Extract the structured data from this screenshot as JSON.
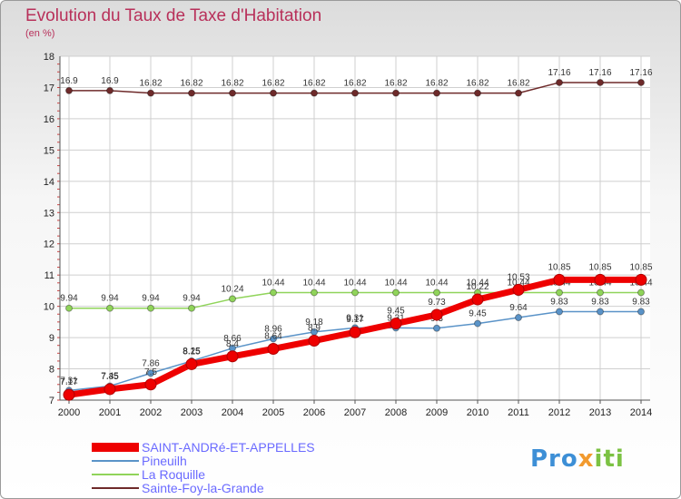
{
  "title": "Evolution du Taux de Taxe d'Habitation",
  "unit": "(en %)",
  "logo": {
    "part1": "Pro",
    "part2": "x",
    "part3": "iti"
  },
  "colors": {
    "title": "#b8305a",
    "grid": "#cfcfcf"
  },
  "chart_data": {
    "type": "line",
    "x": [
      2000,
      2001,
      2002,
      2003,
      2004,
      2005,
      2006,
      2007,
      2008,
      2009,
      2010,
      2011,
      2012,
      2013,
      2014
    ],
    "ylim": [
      7,
      18
    ],
    "yticks": [
      7,
      8,
      9,
      10,
      11,
      12,
      13,
      14,
      15,
      16,
      17,
      18
    ],
    "grid": true,
    "legend": "bottom",
    "series": [
      {
        "name": "Sainte-Foy-la-Grande",
        "color": "#6e2a2a",
        "values": [
          16.9,
          16.9,
          16.82,
          16.82,
          16.82,
          16.82,
          16.82,
          16.82,
          16.82,
          16.82,
          16.82,
          16.82,
          17.16,
          17.16,
          17.16
        ],
        "labels": [
          "16.9",
          "16.9",
          "16.82",
          "16.82",
          "16.82",
          "16.82",
          "16.82",
          "16.82",
          "16.82",
          "16.82",
          "16.82",
          "16.82",
          "17.16",
          "17.16",
          "17.16"
        ]
      },
      {
        "name": "La Roquille",
        "color": "#90d45a",
        "values": [
          9.94,
          9.94,
          9.94,
          9.94,
          10.24,
          10.44,
          10.44,
          10.44,
          10.44,
          10.44,
          10.44,
          10.44,
          10.44,
          10.44,
          10.44
        ],
        "labels": [
          "9.94",
          "9.94",
          "9.94",
          "9.94",
          "10.24",
          "10.44",
          "10.44",
          "10.44",
          "10.44",
          "10.44",
          "10.44",
          "10.44",
          "10.44",
          "10.44",
          "10.44"
        ]
      },
      {
        "name": "Pineuilh",
        "color": "#5a93c8",
        "values": [
          7.31,
          7.45,
          7.86,
          8.25,
          8.66,
          8.96,
          9.18,
          9.31,
          9.31,
          9.3,
          9.45,
          9.64,
          9.83,
          9.83,
          9.83
        ],
        "labels": [
          "7.31",
          "7.45",
          "7.86",
          "8.25",
          "8.66",
          "8.96",
          "9.18",
          "9.31",
          "9.31",
          "9.3",
          "9.45",
          "9.64",
          "9.83",
          "9.83",
          "9.83"
        ]
      },
      {
        "name": "SAINT-ANDRé-ET-APPELLES",
        "color": "#ee0000",
        "values": [
          7.17,
          7.35,
          7.5,
          8.15,
          8.4,
          8.64,
          8.9,
          9.17,
          9.45,
          9.73,
          10.22,
          10.53,
          10.85,
          10.85,
          10.85
        ],
        "labels": [
          "7.17",
          "7.35",
          "7.5",
          "8.15",
          "8.4",
          "8.64",
          "8.9",
          "9.17",
          "9.45",
          "9.73",
          "10.22",
          "10.53",
          "10.85",
          "10.85",
          "10.85"
        ]
      }
    ]
  }
}
